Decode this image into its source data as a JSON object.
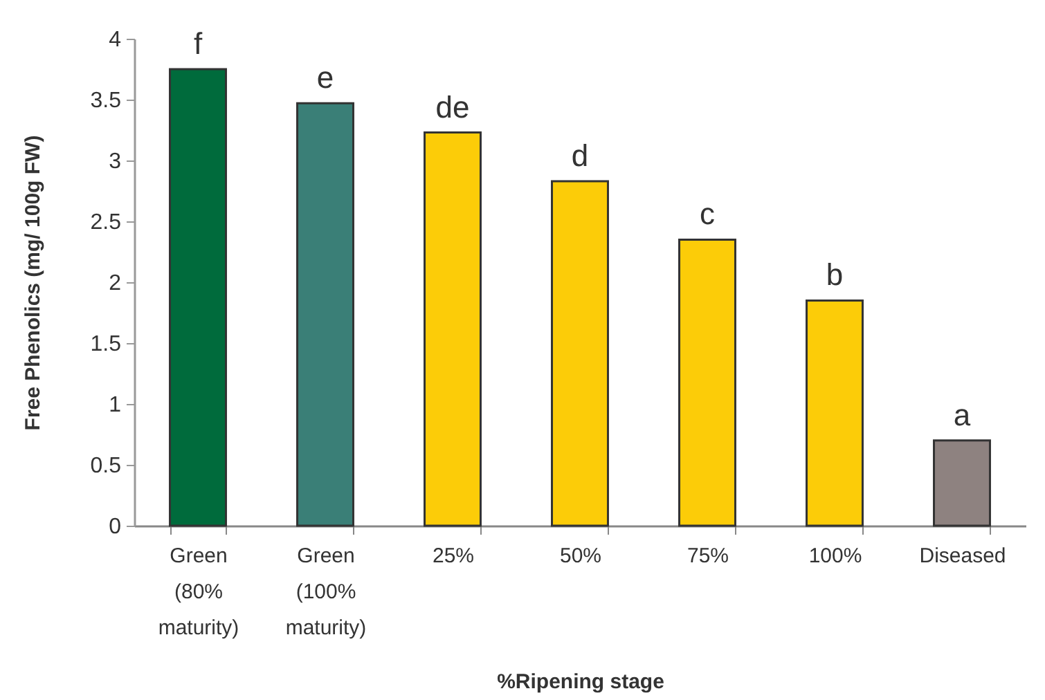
{
  "chart_data": {
    "type": "bar",
    "categories": [
      "Green (80% maturity)",
      "Green (100% maturity)",
      "25%",
      "50%",
      "75%",
      "100%",
      "Diseased"
    ],
    "values": [
      3.75,
      3.47,
      3.23,
      2.83,
      2.35,
      1.85,
      0.7
    ],
    "colors": [
      "#006b3c",
      "#3a7f77",
      "#fccc08",
      "#fccc08",
      "#fccc08",
      "#fccc08",
      "#8e8280"
    ],
    "value_labels": [
      "f",
      "e",
      "de",
      "d",
      "c",
      "b",
      "a"
    ],
    "xlabel": "%Ripening stage",
    "ylabel": "Free Phenolics (mg/ 100g FW)",
    "ylim": [
      0,
      4
    ],
    "yticks": [
      0,
      0.5,
      1,
      1.5,
      2,
      2.5,
      3,
      3.5,
      4
    ]
  }
}
